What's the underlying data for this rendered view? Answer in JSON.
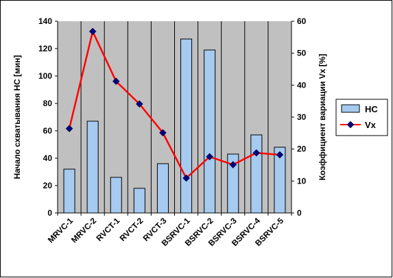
{
  "chart_data": {
    "type": "bar",
    "categories": [
      "MRVC-1",
      "MRVC-2",
      "RVCT-1",
      "RVCT-2",
      "RVCT-3",
      "BSRVC-1",
      "BSRVC-2",
      "BSRVC-3",
      "BSRVC-4",
      "BSRVC-5"
    ],
    "series": [
      {
        "name": "НС",
        "type": "bar",
        "axis": "left",
        "color": "#a6caf0",
        "values": [
          32,
          67,
          26,
          18,
          36,
          127,
          119,
          43,
          57,
          48
        ]
      },
      {
        "name": "Vx",
        "type": "line",
        "axis": "right",
        "color": "#ff0000",
        "marker_color": "#000080",
        "values": [
          26.4,
          56.8,
          41.2,
          34.1,
          25.1,
          10.9,
          17.6,
          15.1,
          18.8,
          18.2
        ]
      }
    ],
    "title": "",
    "ylabel": "Начало схватывания НС [мин]",
    "y2label": "Коэффициент вариации Vx [%]",
    "xlabel": "",
    "ylim": [
      0,
      140
    ],
    "yticks": [
      0,
      20,
      40,
      60,
      80,
      100,
      120,
      140
    ],
    "y2lim": [
      0,
      60
    ],
    "y2ticks": [
      0,
      10,
      20,
      30,
      40,
      50,
      60
    ],
    "grid": true,
    "plot_background": "#c0c0c0",
    "legend_position": "right"
  }
}
